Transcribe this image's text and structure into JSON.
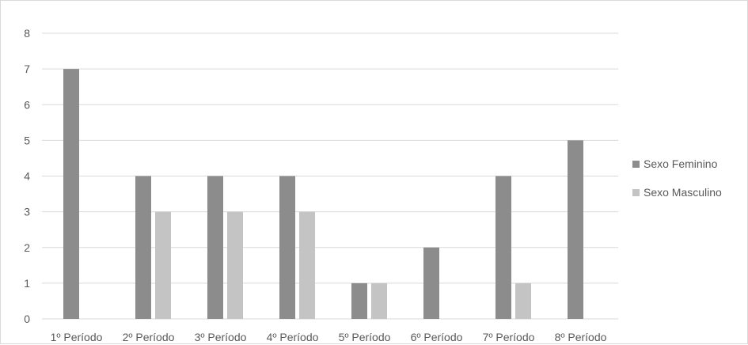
{
  "chart_data": {
    "type": "bar",
    "categories": [
      "1º Período",
      "2º Período",
      "3º Período",
      "4º Período",
      "5º Período",
      "6º Período",
      "7º Período",
      "8º Período"
    ],
    "series": [
      {
        "name": "Sexo Feminino",
        "values": [
          7,
          4,
          4,
          4,
          1,
          2,
          4,
          5
        ],
        "color": "#8c8c8c"
      },
      {
        "name": "Sexo Masculino",
        "values": [
          0,
          3,
          3,
          3,
          1,
          0,
          1,
          0
        ],
        "color": "#c4c4c4"
      }
    ],
    "ylim": [
      0,
      8
    ],
    "yticks": [
      "0",
      "1",
      "2",
      "3",
      "4",
      "5",
      "6",
      "7",
      "8"
    ],
    "grid": true,
    "legend_position": "right",
    "gridline_color": "#d9d9d9"
  }
}
